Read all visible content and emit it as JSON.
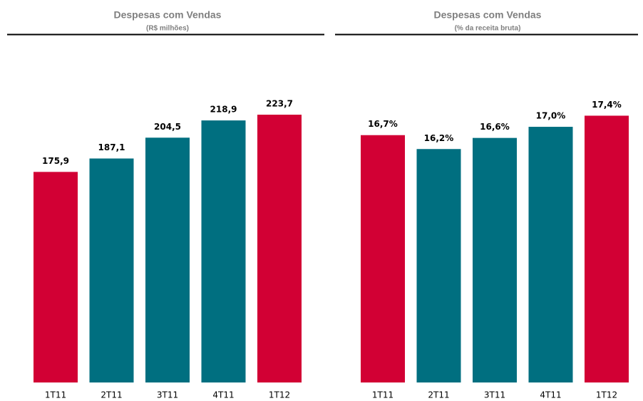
{
  "chart_data": [
    {
      "type": "bar",
      "title": "Despesas com Vendas",
      "subtitle": "(R$ milhões)",
      "categories": [
        "1T11",
        "2T11",
        "3T11",
        "4T11",
        "1T12"
      ],
      "values": [
        175.9,
        187.1,
        204.5,
        218.9,
        223.7
      ],
      "value_labels": [
        "175,9",
        "187,1",
        "204,5",
        "218,9",
        "223,7"
      ],
      "colors": [
        "#d20034",
        "#006f80",
        "#006f80",
        "#006f80",
        "#d20034"
      ],
      "ylim": [
        0,
        260
      ]
    },
    {
      "type": "bar",
      "title": "Despesas com Vendas",
      "subtitle": "(% da receita bruta)",
      "categories": [
        "1T11",
        "2T11",
        "3T11",
        "4T11",
        "1T12"
      ],
      "values": [
        16.7,
        16.2,
        16.6,
        17.0,
        17.4
      ],
      "value_labels": [
        "16,7%",
        "16,2%",
        "16,6%",
        "17,0%",
        "17,4%"
      ],
      "colors": [
        "#d20034",
        "#006f80",
        "#006f80",
        "#006f80",
        "#d20034"
      ],
      "ylim": [
        7.8,
        19
      ]
    }
  ]
}
